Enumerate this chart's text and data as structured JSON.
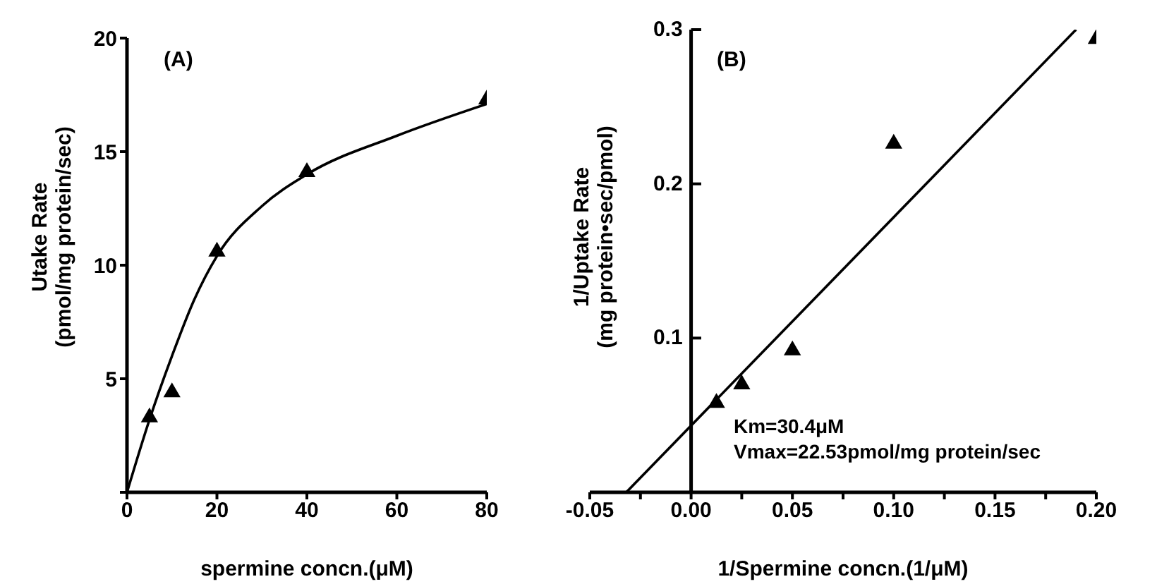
{
  "chart_data": [
    {
      "type": "scatter",
      "xlabel": "spermine concn.(μM)",
      "ylabel": "Utake Rate\n(pmol/mg protein/sec)",
      "annotations": [
        "(A)"
      ],
      "xlim": [
        0,
        80
      ],
      "ylim": [
        0,
        20
      ],
      "xticks": [
        0,
        20,
        40,
        60,
        80
      ],
      "yticks": [
        {
          "value": 0,
          "label": null
        },
        5,
        10,
        15,
        20
      ],
      "grid": false,
      "series": [
        {
          "color": "#000000",
          "marker": "triangle",
          "x": [
            5,
            10,
            20,
            40,
            80
          ],
          "values": [
            3.3,
            4.4,
            10.6,
            14.1,
            17.3
          ]
        },
        {
          "type": "line",
          "color": "#000000",
          "marker": "none",
          "x": [
            0,
            5,
            10,
            15,
            20,
            30,
            40,
            60,
            80
          ],
          "values": [
            0,
            3.2,
            6,
            8.5,
            10.4,
            12.6,
            14,
            15.7,
            17.1
          ]
        }
      ]
    },
    {
      "type": "scatter",
      "xlabel": "1/Spermine concn.(1/μM)",
      "ylabel": "1/Uptake Rate\n(mg protein•sec/pmol)",
      "annotations": [
        "(B)",
        "Km=30.4μM",
        "Vmax=22.53pmol/mg protein/sec"
      ],
      "xlim": [
        -0.05,
        0.2
      ],
      "ylim": [
        0,
        0.3
      ],
      "xticks": [
        -0.05,
        {
          "value": -0.025,
          "label": null
        },
        "0.00",
        {
          "value": 0.025,
          "label": null
        },
        0.05,
        {
          "value": 0.075,
          "label": null
        },
        "0.10",
        {
          "value": 0.125,
          "label": null
        },
        0.15,
        {
          "value": 0.175,
          "label": null
        },
        "0.20"
      ],
      "yticks": [
        0.1,
        0.2,
        0.3
      ],
      "grid": false,
      "series": [
        {
          "color": "#000000",
          "marker": "triangle",
          "x": [
            0.0125,
            0.025,
            0.05,
            0.1,
            0.2
          ],
          "values": [
            0.058,
            0.07,
            0.092,
            0.226,
            0.294
          ]
        },
        {
          "type": "line",
          "color": "#000000",
          "marker": "none",
          "x": [
            -0.032,
            0.19
          ],
          "values": [
            0,
            0.3
          ]
        }
      ]
    }
  ]
}
